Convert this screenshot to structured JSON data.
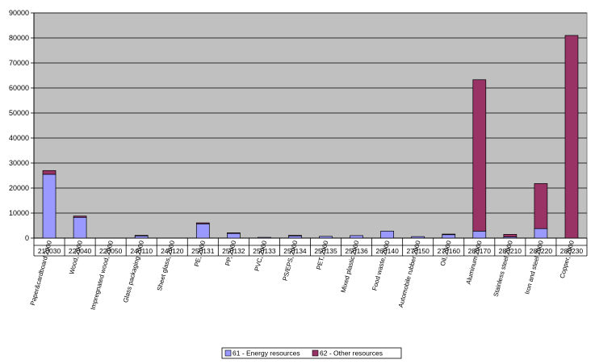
{
  "chart_data": {
    "type": "bar",
    "stacked": true,
    "categories": [
      "Paper&cardboard 2000",
      "Wood, 2000",
      "Impregnated wood, 2000",
      "Glass packaging 2000",
      "Sheet glass, 2000",
      "PE, 2000",
      "PP, 2000",
      "PVC, 2000",
      "PS/EPS, 2000",
      "PET, 2000",
      "Mixed plastic 2000",
      "Food waste, 2000",
      "Automobile rubber 2000",
      "Oil, 2000",
      "Aluminum 2000",
      "Stainless steel 2000",
      "Iron and steel 2000",
      "Copper, 2000"
    ],
    "codes": [
      "210030",
      "220040",
      "220050",
      "240110",
      "240120",
      "250131",
      "250132",
      "250133",
      "250134",
      "250135",
      "250136",
      "260140",
      "270150",
      "270160",
      "280170",
      "280210",
      "280220",
      "280230"
    ],
    "series": [
      {
        "name": "61 - Energy resources",
        "color": "#9999ff",
        "values": [
          25500,
          8300,
          0,
          1000,
          0,
          5700,
          2000,
          300,
          1000,
          700,
          1000,
          2800,
          600,
          1400,
          2800,
          500,
          3800,
          0
        ]
      },
      {
        "name": "62 - Other resources",
        "color": "#993366",
        "values": [
          1500,
          500,
          0,
          100,
          0,
          400,
          100,
          0,
          100,
          0,
          0,
          0,
          0,
          200,
          60500,
          1000,
          18000,
          81000
        ]
      }
    ],
    "ylim": [
      0,
      90000
    ],
    "yticks": [
      "0",
      "10000",
      "20000",
      "30000",
      "40000",
      "50000",
      "60000",
      "70000",
      "80000",
      "90000"
    ],
    "plot_background": "#c0c0c0",
    "grid": true,
    "legend_position": "bottom"
  }
}
